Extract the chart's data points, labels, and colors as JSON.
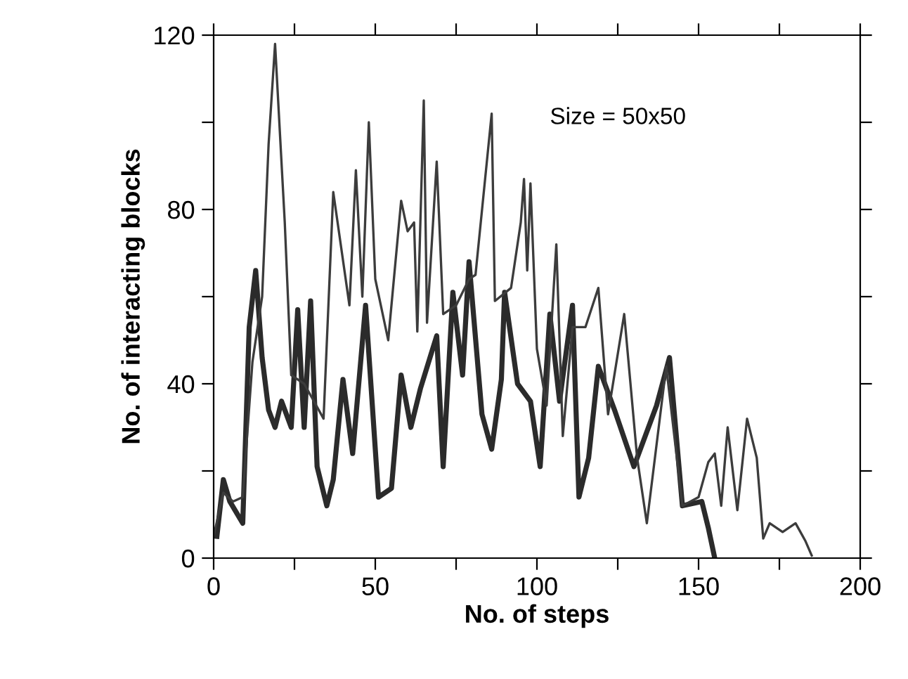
{
  "chart_data": {
    "type": "line",
    "xlabel": "No. of steps",
    "ylabel": "No. of interacting blocks",
    "xlim": [
      0,
      200
    ],
    "ylim": [
      0,
      120
    ],
    "xticks": [
      0,
      {
        "value": 25,
        "label": null
      },
      50,
      {
        "value": 75,
        "label": null
      },
      100,
      {
        "value": 125,
        "label": null
      },
      150,
      {
        "value": 175,
        "label": null
      },
      200
    ],
    "yticks": [
      0,
      {
        "value": 20,
        "label": null
      },
      40,
      {
        "value": 60,
        "label": null
      },
      80,
      {
        "value": 100,
        "label": null
      },
      120
    ],
    "grid": false,
    "legend": false,
    "marker": "none",
    "line_style": "solid",
    "annotations": [
      "Size = 50x50"
    ],
    "series": [
      {
        "color": "#2b2b2b",
        "x": [
          1,
          3,
          5,
          9,
          11,
          13,
          15,
          17,
          19,
          21,
          24,
          26,
          28,
          30,
          32,
          35,
          37,
          40,
          43,
          47,
          51,
          55,
          58,
          61,
          64,
          69,
          71,
          74,
          77,
          79,
          83,
          86,
          89,
          90,
          94,
          98,
          101,
          104,
          107,
          111,
          113,
          116,
          119,
          124,
          130,
          137,
          141,
          145,
          151,
          153,
          155
        ],
        "values": [
          5,
          18,
          13,
          8,
          53,
          66,
          46,
          34,
          30,
          36,
          30,
          57,
          30,
          59,
          21,
          12,
          18,
          41,
          24,
          58,
          14,
          16,
          42,
          30,
          39,
          51,
          21,
          61,
          42,
          68,
          33,
          25,
          41,
          61,
          40,
          36,
          21,
          56,
          36,
          58,
          14,
          23,
          44,
          34,
          21,
          35,
          46,
          12,
          13,
          7,
          0
        ]
      },
      {
        "color": "#3c3c3c",
        "x": [
          0,
          3,
          6,
          9,
          12,
          15,
          17,
          19,
          22,
          24,
          28,
          31,
          34,
          37,
          42,
          44,
          46,
          48,
          50,
          54,
          58,
          60,
          62,
          63,
          65,
          66,
          69,
          71,
          75,
          79,
          81,
          86,
          87,
          92,
          95,
          96,
          97,
          98,
          100,
          103,
          106,
          108,
          111,
          115,
          119,
          122,
          127,
          131,
          134,
          140,
          145,
          150,
          153,
          155,
          157,
          159,
          162,
          165,
          168,
          170,
          172,
          176,
          180,
          183,
          185
        ],
        "values": [
          5,
          15,
          13,
          14,
          45,
          60,
          95,
          118,
          77,
          42,
          40,
          36,
          32,
          84,
          58,
          89,
          60,
          100,
          64,
          50,
          82,
          75,
          77,
          52,
          105,
          54,
          91,
          56,
          58,
          64,
          65,
          102,
          59,
          62,
          77,
          87,
          66,
          86,
          48,
          35,
          72,
          28,
          53,
          53,
          62,
          33,
          56,
          23,
          8,
          44,
          12,
          14,
          22,
          24,
          12,
          30,
          11,
          32,
          23,
          4.5,
          8,
          6,
          8,
          4,
          0.6
        ]
      }
    ]
  }
}
